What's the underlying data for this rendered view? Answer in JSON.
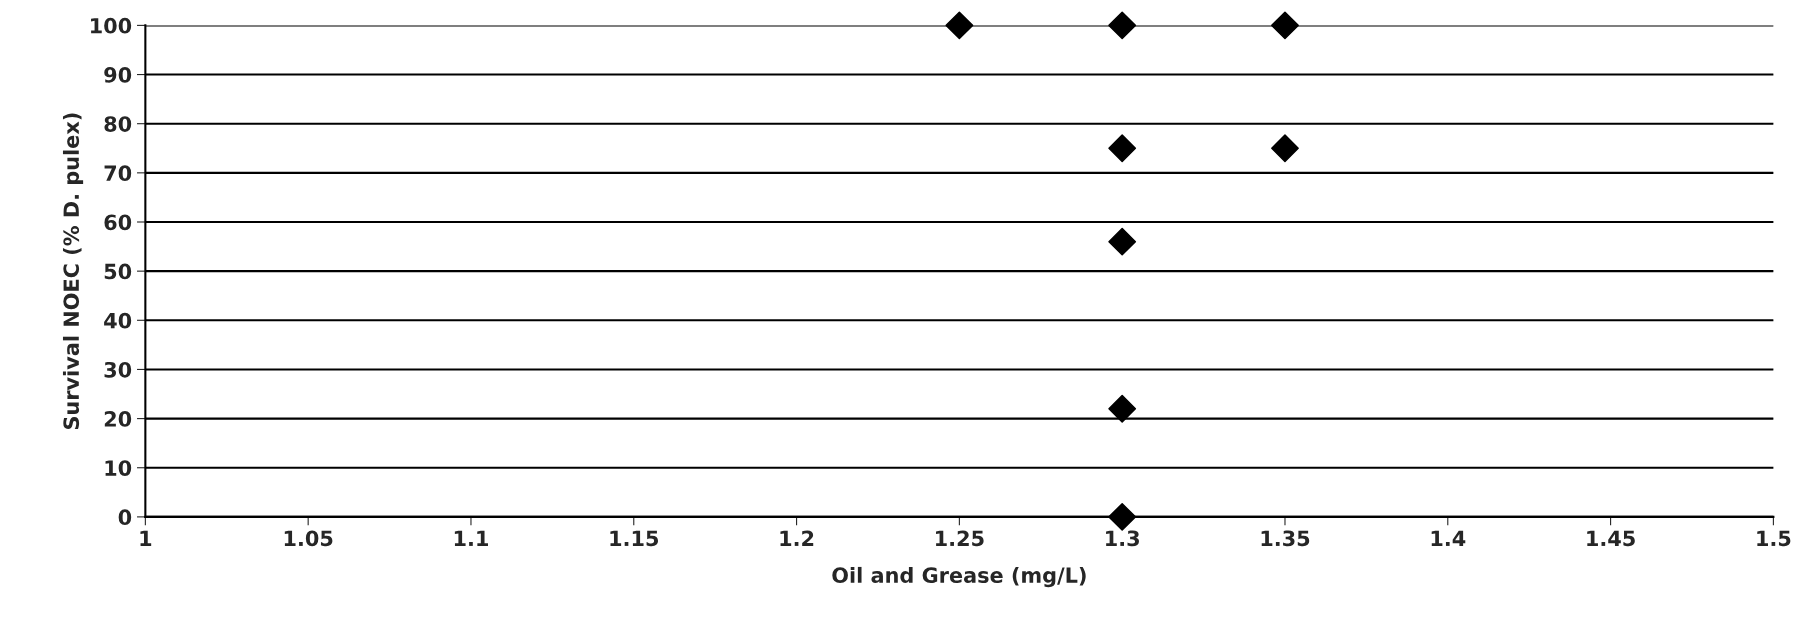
{
  "chart_data": {
    "type": "scatter",
    "xlabel": "Oil and Grease (mg/L)",
    "ylabel": "Survival NOEC (% D. pulex)",
    "x": [
      1.25,
      1.3,
      1.35,
      1.3,
      1.35,
      1.3,
      1.3,
      1.3
    ],
    "series": [
      {
        "color": "#000000",
        "values": [
          100,
          100,
          100,
          75,
          75,
          56,
          22,
          0
        ]
      }
    ],
    "xlim": [
      1,
      1.5
    ],
    "xticks": [
      1,
      1.05,
      1.1,
      1.15,
      1.2,
      1.25,
      1.3,
      1.35,
      1.4,
      1.45,
      1.5
    ],
    "ylim": [
      0,
      100
    ],
    "yticks": [
      0,
      10,
      20,
      30,
      40,
      50,
      60,
      70,
      80,
      90,
      100
    ],
    "grid": "y",
    "marker": "diamond",
    "legend": false
  }
}
